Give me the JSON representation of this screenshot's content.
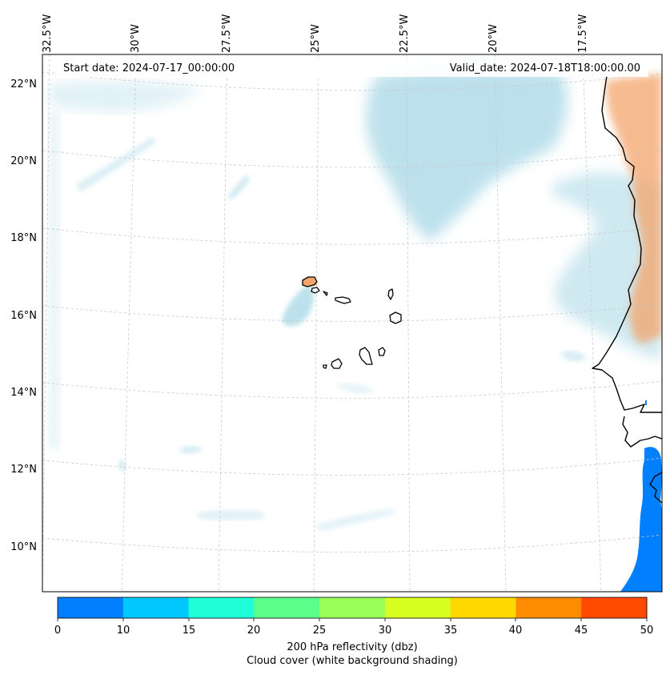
{
  "map": {
    "start_label": "Start date: 2024-07-17_00:00:00",
    "valid_label": "Valid_date: 2024-07-18T18:00:00.00",
    "lon_labels": [
      "32.5°W",
      "30°W",
      "27.5°W",
      "25°W",
      "22.5°W",
      "20°W",
      "17.5°W"
    ],
    "lat_labels": [
      "22°N",
      "20°N",
      "18°N",
      "16°N",
      "14°N",
      "12°N",
      "10°N"
    ]
  },
  "colorbar": {
    "ticks": [
      "0",
      "10",
      "15",
      "20",
      "25",
      "30",
      "35",
      "40",
      "45",
      "50"
    ],
    "colors": [
      "#0080ff",
      "#00c8ff",
      "#1effd8",
      "#5cff8a",
      "#9aff58",
      "#d8ff22",
      "#ffd800",
      "#ff8c00",
      "#ff4a00"
    ],
    "label_line1": "200 hPa reflectivity (dbz)",
    "label_line2": "Cloud cover (white background shading)"
  },
  "colors": {
    "cloud": "#a8d8e6",
    "land": "#f4a46a",
    "reflectivity": "#0080ff",
    "coast": "#000000",
    "grid": "#c8c8c8"
  }
}
